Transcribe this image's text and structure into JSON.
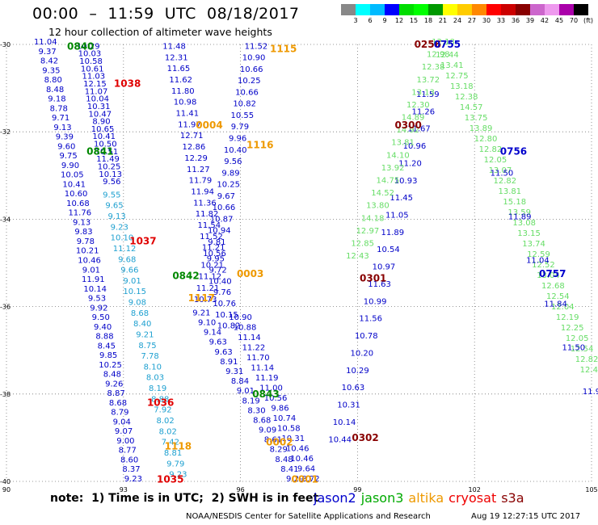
{
  "header": {
    "title": "00:00  –  11:59  UTC  08/18/2017",
    "subtitle": "12 hour collection of altimeter wave heights"
  },
  "legend": {
    "colors": [
      "#888888",
      "#00ffff",
      "#00bbff",
      "#0000ff",
      "#00dd00",
      "#00ff00",
      "#009900",
      "#ffff00",
      "#ffcc00",
      "#ff8800",
      "#ff0000",
      "#cc0000",
      "#880000",
      "#cc66cc",
      "#ee99ee",
      "#aa00aa",
      "#000000"
    ],
    "ticks": [
      "3",
      "6",
      "9",
      "12",
      "15",
      "18",
      "21",
      "24",
      "27",
      "30",
      "33",
      "36",
      "39",
      "42",
      "45",
      "70",
      "(ft)"
    ]
  },
  "map": {
    "lon_ticks": [
      "90",
      "93",
      "96",
      "99",
      "102",
      "105"
    ],
    "lat_ticks": [
      "-30",
      "-32",
      "-34",
      "-36",
      "-38",
      "-40"
    ],
    "lon_range": [
      90,
      105
    ],
    "lat_range": [
      -30,
      -40
    ],
    "grid_style": "dotted"
  },
  "swh_colors": {
    "dark": "#0000c8",
    "mid": "#1ea0d0",
    "cyan": "#20c0e0",
    "light_green": "#66dd66"
  },
  "time_labels": [
    {
      "text": "0840",
      "lon": 91.9,
      "lat": -30.05,
      "color": "#008800"
    },
    {
      "text": "1038",
      "lon": 93.1,
      "lat": -30.9,
      "color": "#e00000"
    },
    {
      "text": "1115",
      "lon": 97.1,
      "lat": -30.1,
      "color": "#ee9900"
    },
    {
      "text": "0256",
      "lon": 100.8,
      "lat": -30.0,
      "color": "#880000"
    },
    {
      "text": "0755",
      "lon": 101.3,
      "lat": -30.0,
      "color": "#0000cc"
    },
    {
      "text": "0004",
      "lon": 95.2,
      "lat": -31.85,
      "color": "#ee9900"
    },
    {
      "text": "1116",
      "lon": 96.5,
      "lat": -32.3,
      "color": "#ee9900"
    },
    {
      "text": "0300",
      "lon": 100.3,
      "lat": -31.85,
      "color": "#880000"
    },
    {
      "text": "0756",
      "lon": 103.0,
      "lat": -32.45,
      "color": "#0000cc"
    },
    {
      "text": "0841",
      "lon": 92.4,
      "lat": -32.45,
      "color": "#008800"
    },
    {
      "text": "1037",
      "lon": 93.5,
      "lat": -34.5,
      "color": "#e00000"
    },
    {
      "text": "0842",
      "lon": 94.6,
      "lat": -35.3,
      "color": "#008800"
    },
    {
      "text": "0003",
      "lon": 96.25,
      "lat": -35.25,
      "color": "#ee9900"
    },
    {
      "text": "1117",
      "lon": 95.0,
      "lat": -35.8,
      "color": "#ee9900"
    },
    {
      "text": "0301",
      "lon": 99.4,
      "lat": -35.35,
      "color": "#880000"
    },
    {
      "text": "0757",
      "lon": 104.0,
      "lat": -35.25,
      "color": "#0000cc"
    },
    {
      "text": "1036",
      "lon": 93.95,
      "lat": -38.2,
      "color": "#e00000"
    },
    {
      "text": "0843",
      "lon": 96.65,
      "lat": -38.0,
      "color": "#008800"
    },
    {
      "text": "1118",
      "lon": 94.4,
      "lat": -39.2,
      "color": "#ee9900"
    },
    {
      "text": "0302",
      "lon": 99.2,
      "lat": -39.0,
      "color": "#880000"
    },
    {
      "text": "0002",
      "lon": 97.0,
      "lat": -39.1,
      "color": "#ee9900"
    },
    {
      "text": "1035",
      "lon": 94.2,
      "lat": -39.95,
      "color": "#e00000"
    },
    {
      "text": "0001",
      "lon": 97.65,
      "lat": -39.95,
      "color": "#ee9900"
    }
  ],
  "tracks": [
    {
      "name": "track-a-left",
      "lon_start": 91.0,
      "lat_start": -30.0,
      "lon_end": 93.25,
      "lat_end": -40.0,
      "color": "#0000c8",
      "values": [
        "11.04",
        "9.37",
        "8.42",
        "9.35",
        "8.80",
        "8.48",
        "9.18",
        "8.78",
        "9.71",
        "9.13",
        "9.39",
        "9.60",
        "9.75",
        "9.90",
        "10.05",
        "10.41",
        "10.60",
        "10.68",
        "11.76",
        "9.13",
        "9.83",
        "9.78",
        "10.21",
        "10.46",
        "9.01",
        "11.91",
        "10.14",
        "9.53",
        "9.92",
        "9.50",
        "9.40",
        "8.88",
        "8.45",
        "9.85",
        "10.25",
        "8.48",
        "9.26",
        "8.87",
        "8.68",
        "8.79",
        "9.04",
        "9.07",
        "9.00",
        "8.77",
        "8.60",
        "8.37",
        "9.23"
      ]
    },
    {
      "name": "track-a-left-2",
      "lon_start": 92.1,
      "lat_start": -30.1,
      "lon_end": 92.7,
      "lat_end": -33.2,
      "color": "#0000c8",
      "values": [
        "10.29",
        "10.03",
        "10.58",
        "10.61",
        "11.03",
        "12.15",
        "11.07",
        "10.04",
        "10.31",
        "10.47",
        "8.90",
        "10.65",
        "10.41",
        "10.50",
        "10.51",
        "11.49",
        "10.25",
        "10.13",
        "9.56"
      ]
    },
    {
      "name": "track-b-mid",
      "lon_start": 92.7,
      "lat_start": -33.5,
      "lon_end": 94.4,
      "lat_end": -39.9,
      "color": "#1ea0d0",
      "values": [
        "9.55",
        "9.65",
        "9.13",
        "9.23",
        "10.10",
        "11.12",
        "9.68",
        "9.66",
        "9.01",
        "10.15",
        "9.08",
        "8.68",
        "8.40",
        "9.21",
        "8.75",
        "7.78",
        "8.10",
        "8.03",
        "8.19",
        "8.88",
        "7.92",
        "8.02",
        "8.02",
        "7.42",
        "8.81",
        "9.79",
        "9.23"
      ]
    },
    {
      "name": "track-c-upper",
      "lon_start": 94.3,
      "lat_start": -30.1,
      "lon_end": 95.7,
      "lat_end": -36.5,
      "color": "#0000c8",
      "values": [
        "11.48",
        "12.31",
        "11.65",
        "11.62",
        "11.80",
        "10.98",
        "11.41",
        "11.97",
        "12.71",
        "12.86",
        "12.29",
        "11.27",
        "11.79",
        "11.94",
        "11.36",
        "11.82",
        "11.54",
        "11.52",
        "11.21",
        "9.95",
        "9.72",
        "10.40",
        "9.76",
        "10.76",
        "10.15",
        "10.82"
      ]
    },
    {
      "name": "track-c-upper-2",
      "lon_start": 96.4,
      "lat_start": -30.1,
      "lon_end": 95.1,
      "lat_end": -35.9,
      "color": "#0000c8",
      "values": [
        "11.52",
        "10.90",
        "10.66",
        "10.25",
        "10.66",
        "10.82",
        "10.55",
        "9.79",
        "9.96",
        "10.40",
        "9.56",
        "9.89",
        "10.25",
        "9.67",
        "10.66",
        "10.87",
        "10.94",
        "9.81",
        "10.56",
        "10.21",
        "11.12",
        "11.21",
        "10.73"
      ]
    },
    {
      "name": "track-d-lower",
      "lon_start": 95.0,
      "lat_start": -36.2,
      "lon_end": 97.4,
      "lat_end": -40.0,
      "color": "#0000c8",
      "values": [
        "9.21",
        "9.10",
        "9.14",
        "9.63",
        "9.63",
        "8.91",
        "9.31",
        "8.84",
        "9.01",
        "8.19",
        "8.30",
        "8.68",
        "9.09",
        "8.61",
        "8.29",
        "8.48",
        "8.41",
        "9.29"
      ]
    },
    {
      "name": "track-d-lower-2",
      "lon_start": 96.0,
      "lat_start": -36.3,
      "lon_end": 97.8,
      "lat_end": -40.0,
      "color": "#0000c8",
      "values": [
        "10.90",
        "10.88",
        "11.14",
        "11.22",
        "11.70",
        "11.14",
        "11.19",
        "11.00",
        "10.56",
        "9.86",
        "10.74",
        "10.58",
        "10.31",
        "10.46",
        "10.46",
        "9.64",
        "8.72"
      ]
    },
    {
      "name": "track-e-rising",
      "lon_start": 98.55,
      "lat_start": -39.1,
      "lon_end": 100.8,
      "lat_end": -31.2,
      "color": "#0000c8",
      "values": [
        "10.44",
        "10.14",
        "10.31",
        "10.63",
        "10.29",
        "10.20",
        "10.78",
        "11.56",
        "10.99",
        "11.63",
        "10.97",
        "10.54",
        "11.89",
        "11.05",
        "11.45",
        "10.93",
        "11.20",
        "10.96",
        "11.67",
        "11.26",
        "11.59"
      ]
    },
    {
      "name": "track-e-green",
      "lon_start": 99.0,
      "lat_start": -34.9,
      "lon_end": 101.2,
      "lat_end": -30.0,
      "color": "#66dd66",
      "values": [
        "12.43",
        "12.85",
        "12.97",
        "14.18",
        "13.80",
        "14.52",
        "14.75",
        "13.92",
        "14.10",
        "13.81",
        "14.92",
        "14.89",
        "12.30",
        "13.13",
        "13.72",
        "12.38",
        "12.98",
        "12.18"
      ]
    },
    {
      "name": "track-f-desc",
      "lon_start": 101.3,
      "lat_start": -30.3,
      "lon_end": 105.0,
      "lat_end": -37.5,
      "color": "#66dd66",
      "values": [
        "12.44",
        "13.41",
        "12.75",
        "13.18",
        "12.38",
        "14.57",
        "13.75",
        "13.89",
        "12.80",
        "12.82",
        "12.05",
        "13.07",
        "12.82",
        "13.81",
        "15.18",
        "13.59",
        "13.08",
        "13.15",
        "13.74",
        "12.59",
        "12.52",
        "13.04",
        "12.68",
        "12.54",
        "12.04",
        "12.19",
        "12.25",
        "12.05",
        "12.54",
        "12.82",
        "12.41"
      ]
    },
    {
      "name": "track-f-desc-blue",
      "lon_start": 102.7,
      "lat_start": -33.0,
      "lon_end": 105.0,
      "lat_end": -38.0,
      "color": "#0000c8",
      "values": [
        "11.50",
        "11.89",
        "11.04",
        "11.84",
        "11.50",
        "11.9"
      ]
    }
  ],
  "note": "note:  1) Time is in UTC;  2) SWH is in feet",
  "satellites": [
    {
      "name": "jason2",
      "color": "#0000cc"
    },
    {
      "name": "jason3",
      "color": "#00aa00"
    },
    {
      "name": "altika",
      "color": "#ee9900"
    },
    {
      "name": "cryosat",
      "color": "#ee0000"
    },
    {
      "name": "s3a",
      "color": "#880000"
    }
  ],
  "footer": {
    "credit": "NOAA/NESDIS Center for Satellite Applications and Research",
    "timestamp": "Aug 19 12:27:15 UTC 2017"
  }
}
